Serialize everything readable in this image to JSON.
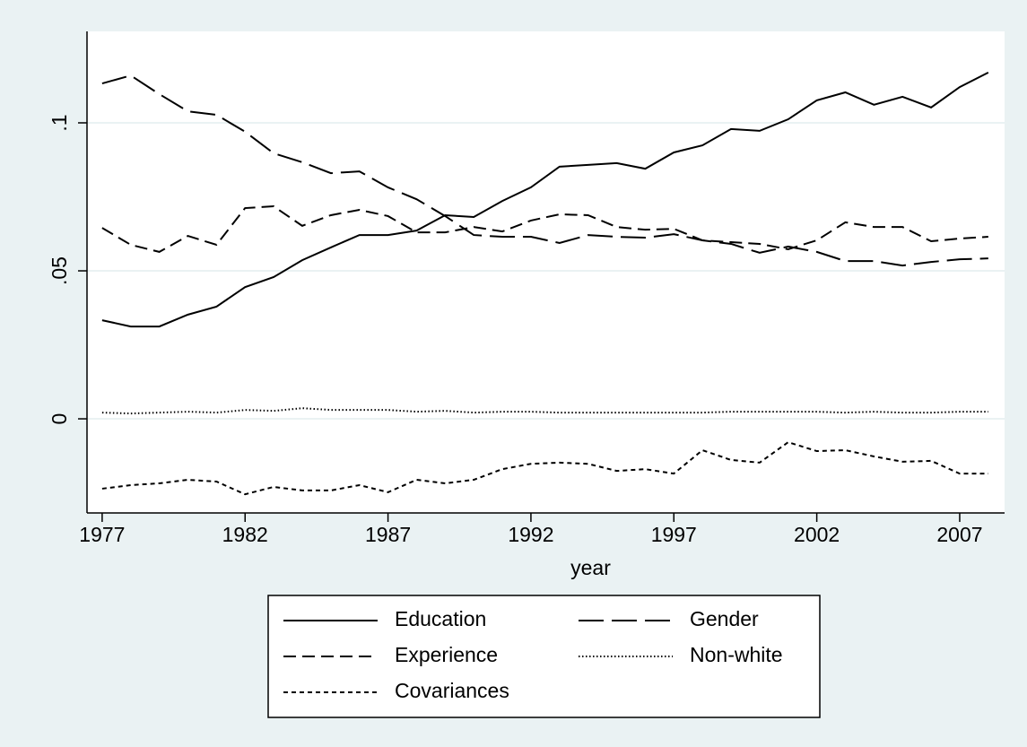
{
  "chart_data": {
    "type": "line",
    "x": [
      1977,
      1978,
      1979,
      1980,
      1981,
      1982,
      1983,
      1984,
      1985,
      1986,
      1987,
      1988,
      1989,
      1990,
      1991,
      1992,
      1993,
      1994,
      1995,
      1996,
      1997,
      1998,
      1999,
      2000,
      2001,
      2002,
      2003,
      2004,
      2005,
      2006,
      2007,
      2008
    ],
    "x_label": "year",
    "xlim": [
      1976.47,
      2008.57
    ],
    "xticks": [
      1977,
      1982,
      1987,
      1992,
      1997,
      2002,
      2007
    ],
    "ylim": [
      -0.0318,
      0.1309
    ],
    "yticks": [
      0,
      {
        "value": 0.05,
        "label": ".05"
      },
      {
        "value": 0.1,
        "label": ".1"
      }
    ],
    "grid": true,
    "legend": "bottom",
    "series": [
      {
        "name": "Education",
        "color": "#000000",
        "style": "solid",
        "values": [
          0.0333,
          0.0312,
          0.0312,
          0.0352,
          0.0379,
          0.0445,
          0.0479,
          0.0536,
          0.0579,
          0.0621,
          0.0621,
          0.0636,
          0.0688,
          0.0682,
          0.0736,
          0.0782,
          0.0852,
          0.0858,
          0.0864,
          0.0845,
          0.09,
          0.0924,
          0.0979,
          0.0973,
          0.1012,
          0.1076,
          0.1103,
          0.1061,
          0.1088,
          0.1052,
          0.1121,
          0.117
        ]
      },
      {
        "name": "Gender",
        "color": "#000000",
        "style": "longdash",
        "values": [
          0.1133,
          0.116,
          0.1097,
          0.1039,
          0.1027,
          0.097,
          0.0897,
          0.0867,
          0.083,
          0.0836,
          0.0782,
          0.0742,
          0.0685,
          0.0621,
          0.0615,
          0.0615,
          0.0594,
          0.0621,
          0.0615,
          0.0612,
          0.0624,
          0.0603,
          0.0591,
          0.0561,
          0.0582,
          0.0564,
          0.0533,
          0.0533,
          0.0518,
          0.053,
          0.0539,
          0.0542
        ]
      },
      {
        "name": "Experience",
        "color": "#000000",
        "style": "dash",
        "values": [
          0.0645,
          0.0588,
          0.0564,
          0.0618,
          0.0588,
          0.0712,
          0.0718,
          0.0652,
          0.0688,
          0.0706,
          0.0685,
          0.063,
          0.063,
          0.0648,
          0.0633,
          0.067,
          0.0691,
          0.0688,
          0.0648,
          0.0639,
          0.0642,
          0.0603,
          0.0597,
          0.0591,
          0.0573,
          0.0603,
          0.0664,
          0.0648,
          0.0648,
          0.06,
          0.0609,
          0.0615
        ]
      },
      {
        "name": "Non-white",
        "color": "#000000",
        "style": "dot",
        "values": [
          0.0021,
          0.0018,
          0.0021,
          0.0024,
          0.0021,
          0.003,
          0.0027,
          0.0036,
          0.003,
          0.003,
          0.003,
          0.0024,
          0.0027,
          0.0021,
          0.0024,
          0.0024,
          0.0021,
          0.0021,
          0.0021,
          0.0021,
          0.0021,
          0.0021,
          0.0024,
          0.0024,
          0.0024,
          0.0024,
          0.0021,
          0.0024,
          0.0021,
          0.0021,
          0.0024,
          0.0024
        ]
      },
      {
        "name": "Covariances",
        "color": "#000000",
        "style": "shortdash",
        "values": [
          -0.0236,
          -0.0224,
          -0.0218,
          -0.0206,
          -0.0212,
          -0.0255,
          -0.023,
          -0.0242,
          -0.0242,
          -0.0224,
          -0.0248,
          -0.0206,
          -0.0218,
          -0.0206,
          -0.017,
          -0.0152,
          -0.0148,
          -0.0152,
          -0.0176,
          -0.017,
          -0.0185,
          -0.0106,
          -0.0139,
          -0.0148,
          -0.0079,
          -0.0109,
          -0.0106,
          -0.0127,
          -0.0145,
          -0.0142,
          -0.0185,
          -0.0185
        ]
      }
    ]
  }
}
